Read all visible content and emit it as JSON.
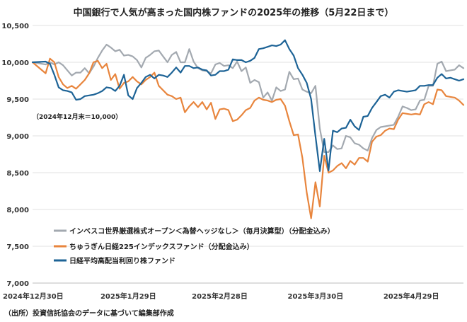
{
  "chart_data": {
    "type": "line",
    "title": "中国銀行で人気が高まった国内株ファンドの2025年の推移（5月22日まで）",
    "annotation": "（2024年12月末＝10,000）",
    "source": "（出所）投資信託協会のデータに基づいて編集部作成",
    "xlabel": "",
    "ylabel": "",
    "ylim": [
      7000,
      10500
    ],
    "yticks": [
      7000,
      7500,
      8000,
      8500,
      9000,
      9500,
      10000,
      10500
    ],
    "ytick_labels": [
      "7,000",
      "7,500",
      "8,000",
      "8,500",
      "9,000",
      "9,500",
      "10,000",
      "10,500"
    ],
    "xlim": [
      0,
      99
    ],
    "xticks": [
      0,
      22,
      43,
      65,
      87
    ],
    "xtick_labels": [
      "2024年12月30日",
      "2025年1月29日",
      "2025年2月28日",
      "2025年3月30日",
      "2025年4月29日"
    ],
    "grid": true,
    "legend_position": "bottom-left",
    "series": [
      {
        "name": "インベスコ世界厳選株式オープン＜為替ヘッジなし＞（毎月決算型）（分配金込み）",
        "color": "#a3a9b0",
        "x": [
          0,
          3,
          4,
          5,
          6,
          7,
          8,
          9,
          10,
          11,
          12,
          13,
          14,
          15,
          16,
          17,
          18,
          19,
          20,
          21,
          22,
          23,
          24,
          25,
          26,
          27,
          28,
          29,
          30,
          31,
          32,
          33,
          34,
          35,
          36,
          37,
          38,
          39,
          40,
          41,
          42,
          43,
          44,
          45,
          46,
          47,
          48,
          49,
          50,
          51,
          52,
          53,
          54,
          55,
          56,
          57,
          58,
          59,
          60,
          61,
          62,
          63,
          64,
          65,
          66,
          67,
          68,
          69,
          70,
          71,
          72,
          73,
          74,
          75,
          76,
          77,
          78,
          79,
          80,
          81,
          82,
          83,
          84,
          85,
          86,
          87,
          88,
          89,
          90,
          91,
          92,
          93,
          94,
          95,
          96,
          97,
          98,
          99
        ],
        "values": [
          10000,
          9970,
          10000,
          9970,
          10000,
          9960,
          9890,
          9820,
          9860,
          9860,
          9920,
          9850,
          9940,
          10060,
          10160,
          10240,
          10200,
          10150,
          10170,
          10090,
          10100,
          10080,
          10030,
          9930,
          10060,
          10100,
          10150,
          10160,
          10080,
          10000,
          10100,
          10140,
          10000,
          10000,
          10180,
          10010,
          9920,
          9890,
          9880,
          9850,
          9970,
          9990,
          9950,
          9960,
          9920,
          10010,
          9880,
          9930,
          9720,
          9760,
          9730,
          9520,
          9590,
          9480,
          9660,
          9610,
          9630,
          9870,
          9770,
          9780,
          9630,
          9600,
          9580,
          9680,
          9100,
          8780,
          8780,
          8870,
          8820,
          8830,
          9000,
          8980,
          8900,
          8880,
          8830,
          8800,
          8970,
          9080,
          9120,
          9130,
          9140,
          9150,
          9260,
          9400,
          9380,
          9350,
          9360,
          9480,
          9490,
          9680,
          9680,
          9980,
          10010,
          9880,
          9890,
          9900,
          9960,
          9920
        ]
      },
      {
        "name": "ちゅうぎん日経225インデックスファンド（分配金込み）",
        "color": "#e8853d",
        "x": [
          0,
          3,
          4,
          5,
          6,
          7,
          8,
          9,
          10,
          11,
          12,
          13,
          14,
          15,
          16,
          17,
          18,
          19,
          20,
          21,
          22,
          23,
          24,
          25,
          26,
          27,
          28,
          29,
          30,
          31,
          32,
          33,
          34,
          35,
          36,
          37,
          38,
          39,
          40,
          41,
          42,
          43,
          44,
          45,
          46,
          47,
          48,
          49,
          50,
          51,
          52,
          53,
          54,
          55,
          56,
          57,
          58,
          59,
          60,
          61,
          62,
          63,
          64,
          65,
          66,
          67,
          68,
          69,
          70,
          71,
          72,
          73,
          74,
          75,
          76,
          77,
          78,
          79,
          80,
          81,
          82,
          83,
          84,
          85,
          86,
          87,
          88,
          89,
          90,
          91,
          92,
          93,
          94,
          95,
          96,
          97,
          98,
          99
        ],
        "values": [
          10000,
          9850,
          10050,
          10000,
          9800,
          9700,
          9650,
          9680,
          9640,
          9700,
          9760,
          9850,
          10000,
          10020,
          9920,
          9980,
          9760,
          9840,
          9640,
          9720,
          9740,
          9800,
          9740,
          9700,
          9760,
          9800,
          9860,
          9680,
          9620,
          9560,
          9540,
          9500,
          9520,
          9320,
          9400,
          9460,
          9390,
          9460,
          9360,
          9450,
          9230,
          9360,
          9370,
          9350,
          9200,
          9220,
          9280,
          9350,
          9380,
          9480,
          9520,
          9490,
          9480,
          9460,
          9490,
          9500,
          9410,
          9200,
          9010,
          9020,
          8700,
          8230,
          7880,
          8370,
          8040,
          8730,
          8500,
          8530,
          8590,
          8630,
          8560,
          8660,
          8610,
          8700,
          8700,
          8650,
          8920,
          8990,
          9010,
          9070,
          9100,
          9090,
          9220,
          9310,
          9300,
          9290,
          9300,
          9290,
          9430,
          9460,
          9430,
          9630,
          9620,
          9540,
          9530,
          9520,
          9480,
          9420
        ]
      },
      {
        "name": "日経平均高配当利回り株ファンド",
        "color": "#1d6396",
        "x": [
          0,
          3,
          4,
          5,
          6,
          7,
          8,
          9,
          10,
          11,
          12,
          13,
          14,
          15,
          16,
          17,
          18,
          19,
          20,
          21,
          22,
          23,
          24,
          25,
          26,
          27,
          28,
          29,
          30,
          31,
          32,
          33,
          34,
          35,
          36,
          37,
          38,
          39,
          40,
          41,
          42,
          43,
          44,
          45,
          46,
          47,
          48,
          49,
          50,
          51,
          52,
          53,
          54,
          55,
          56,
          57,
          58,
          59,
          60,
          61,
          62,
          63,
          64,
          65,
          66,
          67,
          68,
          69,
          70,
          71,
          72,
          73,
          74,
          75,
          76,
          77,
          78,
          79,
          80,
          81,
          82,
          83,
          84,
          85,
          86,
          87,
          88,
          89,
          90,
          91,
          92,
          93,
          94,
          95,
          96,
          97,
          98,
          99
        ],
        "values": [
          10000,
          10010,
          9980,
          9830,
          9660,
          9620,
          9610,
          9590,
          9490,
          9500,
          9540,
          9550,
          9560,
          9580,
          9610,
          9660,
          9650,
          9610,
          9680,
          9830,
          9550,
          9500,
          9650,
          9720,
          9800,
          9830,
          9780,
          9830,
          9820,
          9800,
          9860,
          9930,
          9860,
          9950,
          9950,
          9920,
          9930,
          9900,
          9890,
          9820,
          9830,
          9880,
          9880,
          9900,
          10040,
          10030,
          10030,
          10000,
          10020,
          10060,
          10180,
          10190,
          10210,
          10230,
          10220,
          10240,
          10300,
          10180,
          10090,
          9920,
          9830,
          9720,
          9500,
          9000,
          8520,
          8960,
          8530,
          9070,
          9050,
          9100,
          9110,
          9220,
          9130,
          9080,
          9260,
          9270,
          9380,
          9460,
          9540,
          9560,
          9520,
          9600,
          9620,
          9610,
          9600,
          9610,
          9620,
          9680,
          9680,
          9690,
          9690,
          9790,
          9840,
          9780,
          9790,
          9770,
          9750,
          9770
        ]
      }
    ]
  }
}
